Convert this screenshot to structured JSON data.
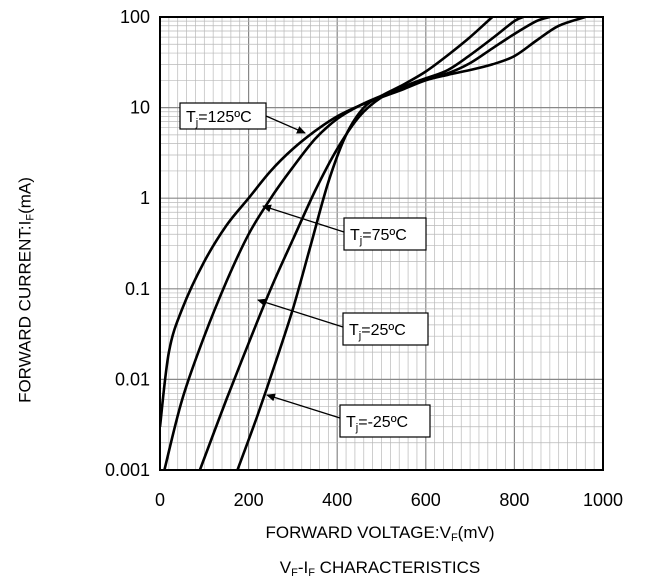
{
  "chart_data": {
    "type": "line",
    "title": {
      "main": "V",
      "sub1": "F",
      "mid": "-I",
      "sub2": "F",
      "rest": " CHARACTERISTICS"
    },
    "xlabel": {
      "main": "FORWARD VOLTAGE:V",
      "sub": "F",
      "unit": "(mV)"
    },
    "ylabel": {
      "main": "FORWARD CURRENT:I",
      "sub": "F",
      "unit": "(mA)"
    },
    "xlim": [
      0,
      1000
    ],
    "ylim": [
      0.001,
      100
    ],
    "yscale": "log",
    "grid": true,
    "x_ticks": [
      "0",
      "200",
      "400",
      "600",
      "800",
      "1000"
    ],
    "y_ticks": [
      "0.001",
      "0.01",
      "0.1",
      "1",
      "10",
      "100"
    ],
    "series": [
      {
        "name": "T_j=125ºC",
        "points": [
          [
            0,
            0.003
          ],
          [
            20,
            0.02
          ],
          [
            50,
            0.06
          ],
          [
            100,
            0.2
          ],
          [
            150,
            0.5
          ],
          [
            200,
            1.0
          ],
          [
            250,
            2.0
          ],
          [
            300,
            3.5
          ],
          [
            350,
            5.5
          ],
          [
            400,
            8.0
          ],
          [
            450,
            10.5
          ],
          [
            500,
            13.0
          ],
          [
            550,
            16.0
          ],
          [
            600,
            20.0
          ],
          [
            650,
            23.0
          ],
          [
            700,
            26.0
          ],
          [
            750,
            30.0
          ],
          [
            800,
            37.0
          ],
          [
            850,
            55.0
          ],
          [
            900,
            80.0
          ],
          [
            960,
            100.0
          ]
        ]
      },
      {
        "name": "T_j=75ºC",
        "points": [
          [
            10,
            0.001
          ],
          [
            50,
            0.006
          ],
          [
            100,
            0.03
          ],
          [
            150,
            0.12
          ],
          [
            200,
            0.4
          ],
          [
            250,
            1.0
          ],
          [
            300,
            2.2
          ],
          [
            350,
            4.5
          ],
          [
            400,
            7.5
          ],
          [
            450,
            10.5
          ],
          [
            500,
            13.5
          ],
          [
            550,
            17.0
          ],
          [
            600,
            21.0
          ],
          [
            650,
            24.0
          ],
          [
            700,
            31.0
          ],
          [
            750,
            45.0
          ],
          [
            800,
            65.0
          ],
          [
            850,
            90.0
          ],
          [
            880,
            100.0
          ]
        ]
      },
      {
        "name": "T_j=25ºC",
        "points": [
          [
            90,
            0.001
          ],
          [
            150,
            0.006
          ],
          [
            200,
            0.025
          ],
          [
            250,
            0.1
          ],
          [
            300,
            0.35
          ],
          [
            350,
            1.2
          ],
          [
            400,
            3.5
          ],
          [
            450,
            8.0
          ],
          [
            500,
            13.0
          ],
          [
            550,
            17.0
          ],
          [
            600,
            21.0
          ],
          [
            650,
            26.0
          ],
          [
            700,
            38.0
          ],
          [
            750,
            58.0
          ],
          [
            800,
            90.0
          ],
          [
            820,
            100.0
          ]
        ]
      },
      {
        "name": "T_j=-25ºC",
        "points": [
          [
            175,
            0.001
          ],
          [
            220,
            0.004
          ],
          [
            260,
            0.015
          ],
          [
            300,
            0.06
          ],
          [
            340,
            0.3
          ],
          [
            380,
            1.5
          ],
          [
            420,
            5.0
          ],
          [
            460,
            10.0
          ],
          [
            500,
            13.5
          ],
          [
            550,
            18.0
          ],
          [
            600,
            25.0
          ],
          [
            650,
            38.0
          ],
          [
            700,
            60.0
          ],
          [
            750,
            100.0
          ]
        ]
      }
    ],
    "annotations": [
      {
        "main": "T",
        "sub": "j",
        "rest": "=125ºC",
        "series": 0
      },
      {
        "main": "T",
        "sub": "j",
        "rest": "=75ºC",
        "series": 1
      },
      {
        "main": "T",
        "sub": "j",
        "rest": "=25ºC",
        "series": 2
      },
      {
        "main": "T",
        "sub": "j",
        "rest": "=-25ºC",
        "series": 3
      }
    ]
  }
}
